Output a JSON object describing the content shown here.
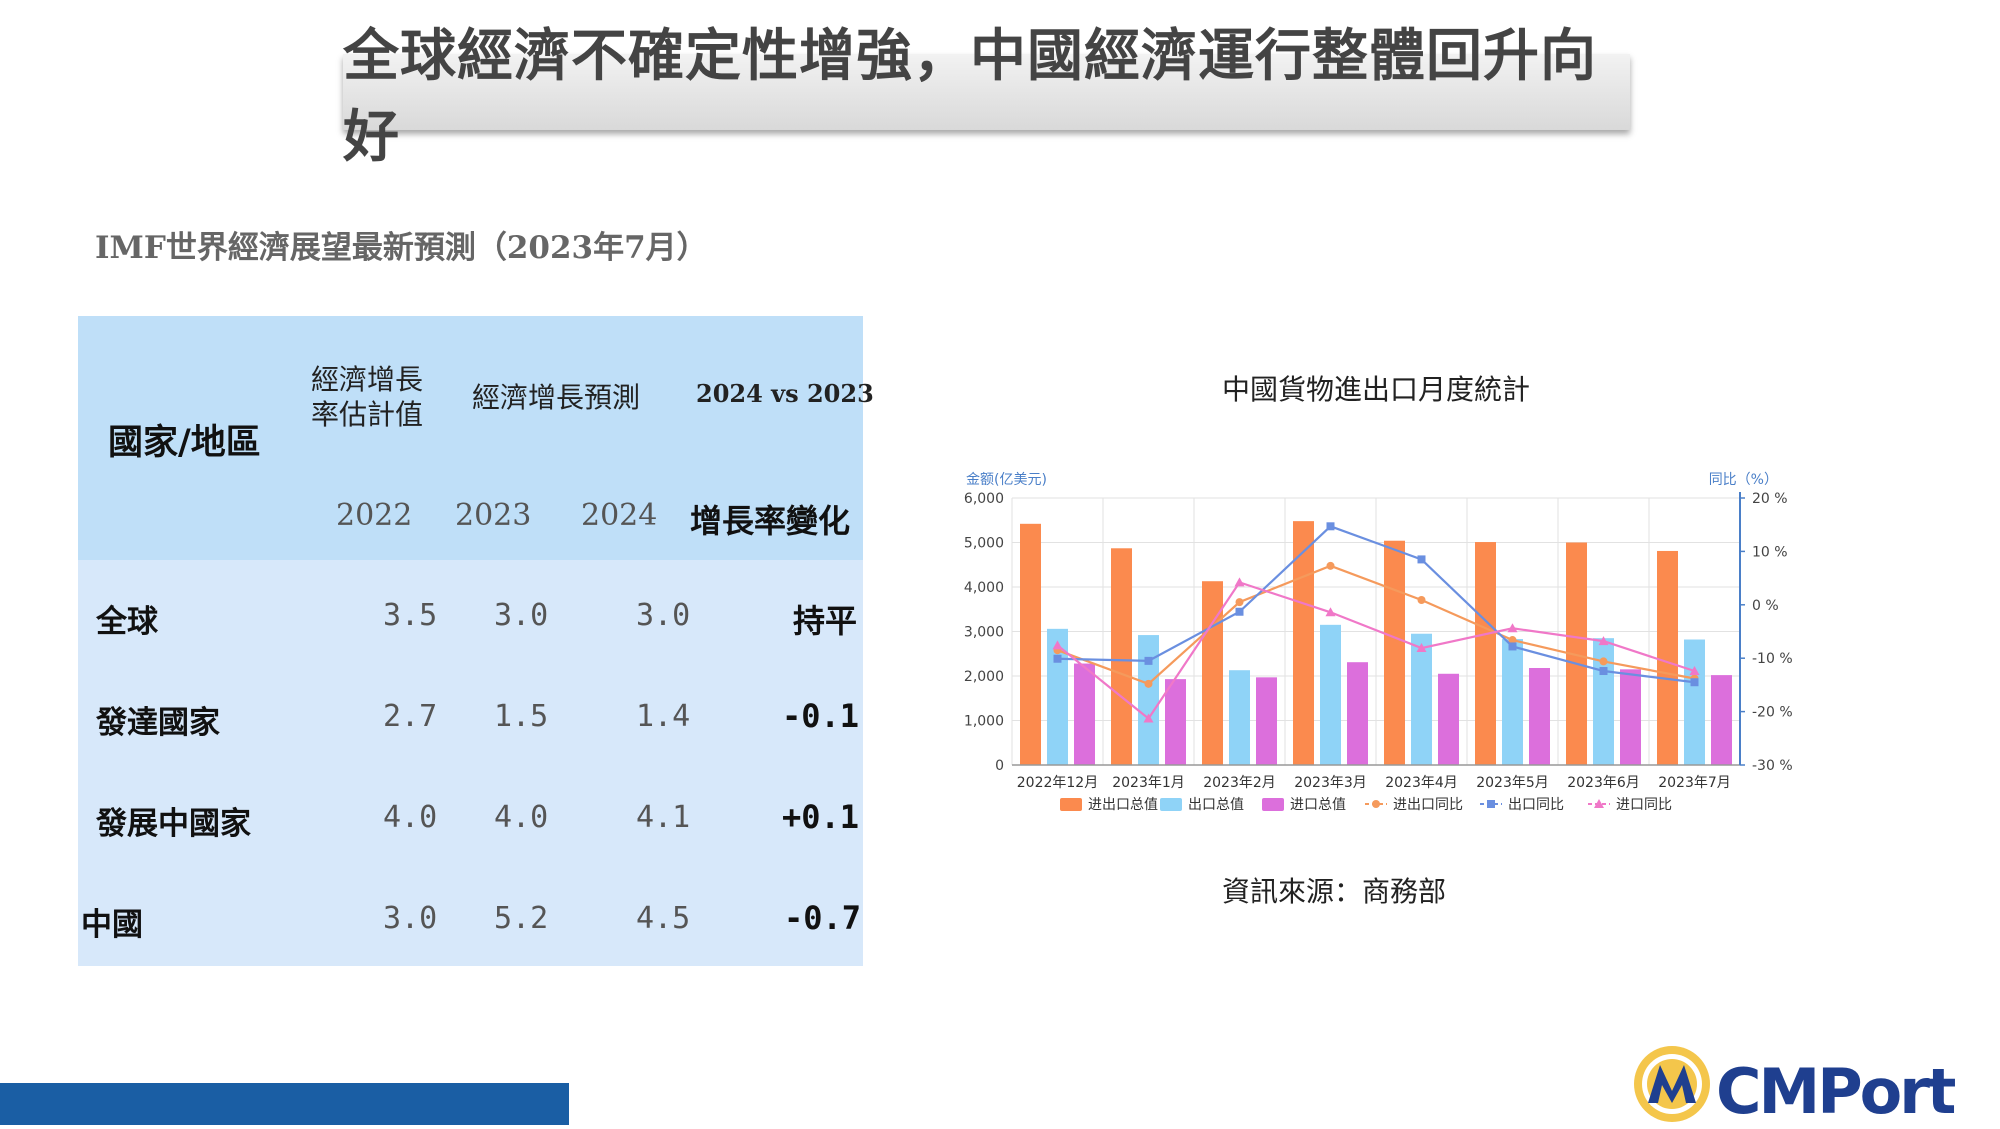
{
  "title": "全球經濟不確定性增強，中國經濟運行整體回升向好",
  "subtitle": "IMF世界經濟展望最新預測（2023年7月）",
  "table": {
    "header_region": "國家/地區",
    "header_estimate": "經濟增長率估計值",
    "header_estimate_line1": "經濟增長",
    "header_estimate_line2": "率估計值",
    "header_forecast": "經濟增長預測",
    "header_compare": "2024 vs 2023",
    "header_change": "增長率變化",
    "years": [
      "2022",
      "2023",
      "2024"
    ],
    "rows": [
      {
        "region": "全球",
        "v2022": "3.5",
        "v2023": "3.0",
        "v2024": "3.0",
        "change": "持平"
      },
      {
        "region": "發達國家",
        "v2022": "2.7",
        "v2023": "1.5",
        "v2024": "1.4",
        "change": "-0.1"
      },
      {
        "region": "發展中國家",
        "v2022": "4.0",
        "v2023": "4.0",
        "v2024": "4.1",
        "change": "+0.1"
      },
      {
        "region": "中國",
        "v2022": "3.0",
        "v2023": "5.2",
        "v2024": "4.5",
        "change": "-0.7"
      }
    ]
  },
  "chart_title": "中國貨物進出口月度統計",
  "source": "資訊來源：商務部",
  "logo_text": "CMPort",
  "colors": {
    "total": "#fb8a4e",
    "export": "#8fd3f7",
    "import": "#dc6fdc",
    "total_yoy": "#f59a5c",
    "export_yoy": "#6a8fe0",
    "import_yoy": "#f078c8",
    "axis_label": "#4a7fc8",
    "bottom_bar": "#1a5ea4"
  },
  "chart_data": {
    "type": "bar",
    "title": "中國貨物進出口月度統計",
    "categories": [
      "2022年12月",
      "2023年1月",
      "2023年2月",
      "2023年3月",
      "2023年4月",
      "2023年5月",
      "2023年6月",
      "2023年7月"
    ],
    "ylabel": "金额(亿美元)",
    "y2label": "同比（%）",
    "ylim": [
      0,
      6000
    ],
    "y2lim": [
      -30,
      20
    ],
    "yticks": [
      "0",
      "1,000",
      "2,000",
      "3,000",
      "4,000",
      "5,000",
      "6,000"
    ],
    "y2ticks": [
      "-30 %",
      "-20 %",
      "-10 %",
      "0 %",
      "10 %",
      "20 %"
    ],
    "series": [
      {
        "name": "进出口总值",
        "kind": "bar",
        "values": [
          5420,
          4870,
          4130,
          5480,
          5040,
          5010,
          5000,
          4810
        ]
      },
      {
        "name": "出口总值",
        "kind": "bar",
        "values": [
          3060,
          2920,
          2130,
          3150,
          2950,
          2830,
          2850,
          2820
        ]
      },
      {
        "name": "进口总值",
        "kind": "bar",
        "values": [
          2280,
          1930,
          1970,
          2310,
          2050,
          2180,
          2150,
          2020
        ]
      },
      {
        "name": "进出口同比",
        "kind": "line",
        "values": [
          -8.5,
          -14.8,
          0.5,
          7.3,
          0.9,
          -6.6,
          -10.6,
          -13.8
        ]
      },
      {
        "name": "出口同比",
        "kind": "line",
        "values": [
          -10.1,
          -10.5,
          -1.3,
          14.7,
          8.5,
          -7.8,
          -12.4,
          -14.5
        ]
      },
      {
        "name": "进口同比",
        "kind": "line",
        "values": [
          -7.6,
          -21.3,
          4.2,
          -1.4,
          -8.1,
          -4.4,
          -6.8,
          -12.4
        ]
      }
    ],
    "legend": "bottom"
  }
}
